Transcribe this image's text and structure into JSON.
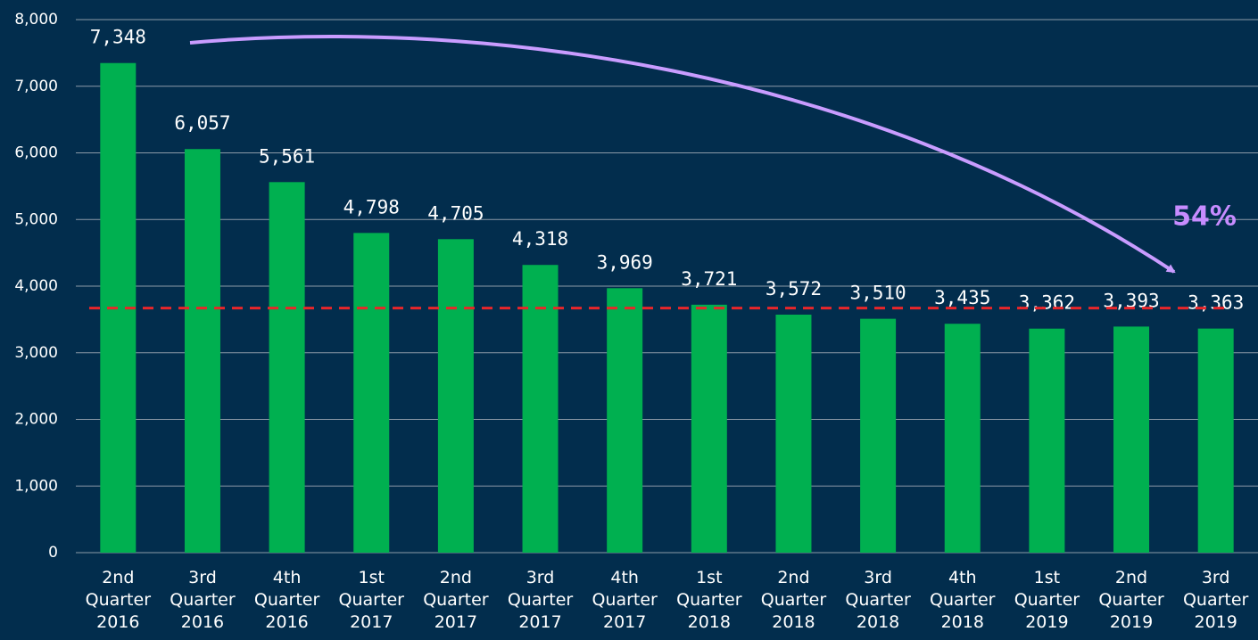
{
  "chart_data": {
    "type": "bar",
    "categories": [
      "2nd Quarter 2016",
      "3rd Quarter 2016",
      "4th Quarter 2016",
      "1st Quarter 2017",
      "2nd Quarter 2017",
      "3rd Quarter 2017",
      "4th Quarter 2017",
      "1st Quarter 2018",
      "2nd Quarter 2018",
      "3rd Quarter 2018",
      "4th Quarter 2018",
      "1st Quarter 2019",
      "2nd Quarter 2019",
      "3rd Quarter 2019"
    ],
    "values": [
      7348,
      6057,
      5561,
      4798,
      4705,
      4318,
      3969,
      3721,
      3572,
      3510,
      3435,
      3362,
      3393,
      3363
    ],
    "value_labels": [
      "7,348",
      "6,057",
      "5,561",
      "4,798",
      "4,705",
      "4,318",
      "3,969",
      "3,721",
      "3,572",
      "3,510",
      "3,435",
      "3,362",
      "3,393",
      "3,363"
    ],
    "color": "#00b050",
    "ylim": [
      0,
      8000
    ],
    "yticks": [
      0,
      {
        "value": 1000,
        "label": "1,000"
      },
      {
        "value": 2000,
        "label": "2,000"
      },
      {
        "value": 3000,
        "label": "3,000"
      },
      {
        "value": 4000,
        "label": "4,000"
      },
      {
        "value": 5000,
        "label": "5,000"
      },
      {
        "value": 6000,
        "label": "6,000"
      },
      {
        "value": 7000,
        "label": "7,000"
      },
      {
        "value": 8000,
        "label": "8,000"
      }
    ],
    "grid": true,
    "reference_line": 3670,
    "reference_color": "#e8262a",
    "annotation": "54%"
  }
}
